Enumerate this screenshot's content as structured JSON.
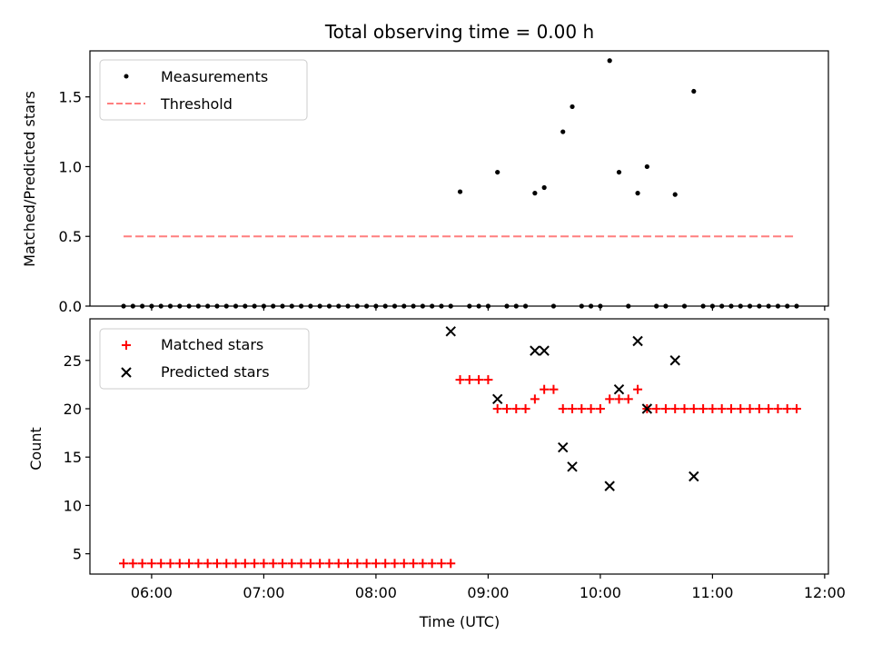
{
  "figure": {
    "title": "Total observing time = 0.00 h"
  },
  "colors": {
    "measurements": "#000000",
    "threshold": "#ff7f7f",
    "matched": "#ff0000",
    "predicted": "#000000"
  },
  "chart_data": [
    {
      "type": "scatter",
      "title": "Total observing time = 0.00 h",
      "xlabel": "",
      "ylabel": "Matched/Predicted stars",
      "xlim": [
        "05:27",
        "12:02"
      ],
      "ylim": [
        0,
        1.83
      ],
      "yticks": [
        0.0,
        0.5,
        1.0,
        1.5
      ],
      "ytick_labels": [
        "0.0",
        "0.5",
        "1.0",
        "1.5"
      ],
      "grid": false,
      "legend_position": "top-left",
      "series": [
        {
          "name": "Measurements",
          "kind": "scatter",
          "marker": "dot",
          "x": [
            "05:45",
            "05:50",
            "05:55",
            "06:00",
            "06:05",
            "06:10",
            "06:15",
            "06:20",
            "06:25",
            "06:30",
            "06:35",
            "06:40",
            "06:45",
            "06:50",
            "06:55",
            "07:00",
            "07:05",
            "07:10",
            "07:15",
            "07:20",
            "07:25",
            "07:30",
            "07:35",
            "07:40",
            "07:45",
            "07:50",
            "07:55",
            "08:00",
            "08:05",
            "08:10",
            "08:15",
            "08:20",
            "08:25",
            "08:30",
            "08:35",
            "08:40",
            "08:45",
            "08:50",
            "08:55",
            "09:00",
            "09:05",
            "09:10",
            "09:15",
            "09:20",
            "09:25",
            "09:30",
            "09:35",
            "09:40",
            "09:45",
            "09:50",
            "09:55",
            "10:00",
            "10:05",
            "10:10",
            "10:15",
            "10:20",
            "10:25",
            "10:30",
            "10:35",
            "10:40",
            "10:45",
            "10:50",
            "10:55",
            "11:00",
            "11:05",
            "11:10",
            "11:15",
            "11:20",
            "11:25",
            "11:30",
            "11:35",
            "11:40",
            "11:45"
          ],
          "y": [
            0,
            0,
            0,
            0,
            0,
            0,
            0,
            0,
            0,
            0,
            0,
            0,
            0,
            0,
            0,
            0,
            0,
            0,
            0,
            0,
            0,
            0,
            0,
            0,
            0,
            0,
            0,
            0,
            0,
            0,
            0,
            0,
            0,
            0,
            0,
            0,
            0.82,
            0,
            0,
            0,
            0.96,
            0,
            0,
            0,
            0.81,
            0.85,
            0,
            1.25,
            1.43,
            0,
            0,
            0,
            1.76,
            0.96,
            0,
            0.81,
            1.0,
            0,
            0,
            0.8,
            0,
            1.54,
            0,
            0,
            0,
            0,
            0,
            0,
            0,
            0,
            0,
            0,
            0
          ]
        },
        {
          "name": "Threshold",
          "kind": "line",
          "style": "dashed",
          "x": [
            "05:45",
            "11:45"
          ],
          "y": [
            0.5,
            0.5
          ]
        }
      ]
    },
    {
      "type": "scatter",
      "title": "",
      "xlabel": "Time (UTC)",
      "ylabel": "Count",
      "xlim": [
        "05:27",
        "12:02"
      ],
      "ylim": [
        2.9,
        29.3
      ],
      "xticks": [
        "06:00",
        "07:00",
        "08:00",
        "09:00",
        "10:00",
        "11:00",
        "12:00"
      ],
      "yticks": [
        5,
        10,
        15,
        20,
        25
      ],
      "ytick_labels": [
        "5",
        "10",
        "15",
        "20",
        "25"
      ],
      "grid": false,
      "legend_position": "top-left",
      "series": [
        {
          "name": "Matched stars",
          "kind": "scatter",
          "marker": "plus",
          "x": [
            "05:45",
            "05:50",
            "05:55",
            "06:00",
            "06:05",
            "06:10",
            "06:15",
            "06:20",
            "06:25",
            "06:30",
            "06:35",
            "06:40",
            "06:45",
            "06:50",
            "06:55",
            "07:00",
            "07:05",
            "07:10",
            "07:15",
            "07:20",
            "07:25",
            "07:30",
            "07:35",
            "07:40",
            "07:45",
            "07:50",
            "07:55",
            "08:00",
            "08:05",
            "08:10",
            "08:15",
            "08:20",
            "08:25",
            "08:30",
            "08:35",
            "08:40",
            "08:45",
            "08:50",
            "08:55",
            "09:00",
            "09:05",
            "09:10",
            "09:15",
            "09:20",
            "09:25",
            "09:30",
            "09:35",
            "09:40",
            "09:45",
            "09:50",
            "09:55",
            "10:00",
            "10:05",
            "10:10",
            "10:15",
            "10:20",
            "10:25",
            "10:30",
            "10:35",
            "10:40",
            "10:45",
            "10:50",
            "10:55",
            "11:00",
            "11:05",
            "11:10",
            "11:15",
            "11:20",
            "11:25",
            "11:30",
            "11:35",
            "11:40",
            "11:45"
          ],
          "y": [
            4,
            4,
            4,
            4,
            4,
            4,
            4,
            4,
            4,
            4,
            4,
            4,
            4,
            4,
            4,
            4,
            4,
            4,
            4,
            4,
            4,
            4,
            4,
            4,
            4,
            4,
            4,
            4,
            4,
            4,
            4,
            4,
            4,
            4,
            4,
            4,
            23,
            23,
            23,
            23,
            20,
            20,
            20,
            20,
            21,
            22,
            22,
            20,
            20,
            20,
            20,
            20,
            21,
            21,
            21,
            22,
            20,
            20,
            20,
            20,
            20,
            20,
            20,
            20,
            20,
            20,
            20,
            20,
            20,
            20,
            20,
            20,
            20
          ]
        },
        {
          "name": "Predicted stars",
          "kind": "scatter",
          "marker": "x",
          "x": [
            "08:40",
            "09:05",
            "09:25",
            "09:30",
            "09:40",
            "09:45",
            "10:05",
            "10:10",
            "10:20",
            "10:25",
            "10:40",
            "10:50"
          ],
          "y": [
            28,
            21,
            26,
            26,
            16,
            14,
            12,
            22,
            27,
            20,
            25,
            13
          ]
        }
      ]
    }
  ]
}
